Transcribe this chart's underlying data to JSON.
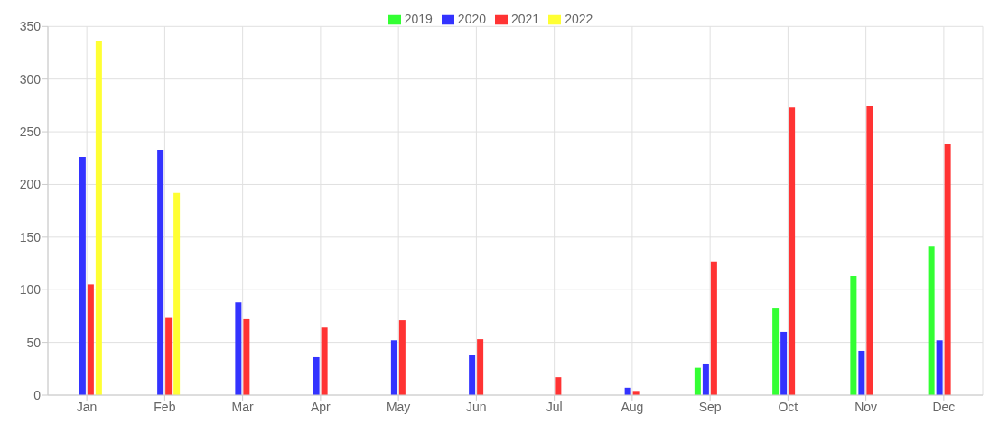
{
  "chart_data": {
    "type": "bar",
    "categories": [
      "Jan",
      "Feb",
      "Mar",
      "Apr",
      "May",
      "Jun",
      "Jul",
      "Aug",
      "Sep",
      "Oct",
      "Nov",
      "Dec"
    ],
    "series": [
      {
        "name": "2019",
        "color": "#33ff33",
        "values": [
          null,
          null,
          null,
          null,
          null,
          null,
          null,
          null,
          26,
          83,
          113,
          141
        ]
      },
      {
        "name": "2020",
        "color": "#3333ff",
        "values": [
          226,
          233,
          88,
          36,
          52,
          38,
          null,
          7,
          30,
          60,
          42,
          52
        ]
      },
      {
        "name": "2021",
        "color": "#ff3333",
        "values": [
          105,
          74,
          72,
          64,
          71,
          53,
          17,
          4,
          127,
          273,
          275,
          238
        ]
      },
      {
        "name": "2022",
        "color": "#ffff33",
        "values": [
          336,
          192,
          null,
          null,
          null,
          null,
          null,
          null,
          null,
          null,
          null,
          null
        ]
      }
    ],
    "ylim": [
      0,
      350
    ],
    "yticks": [
      0,
      50,
      100,
      150,
      200,
      250,
      300,
      350
    ],
    "grid": true,
    "legend": "top"
  }
}
